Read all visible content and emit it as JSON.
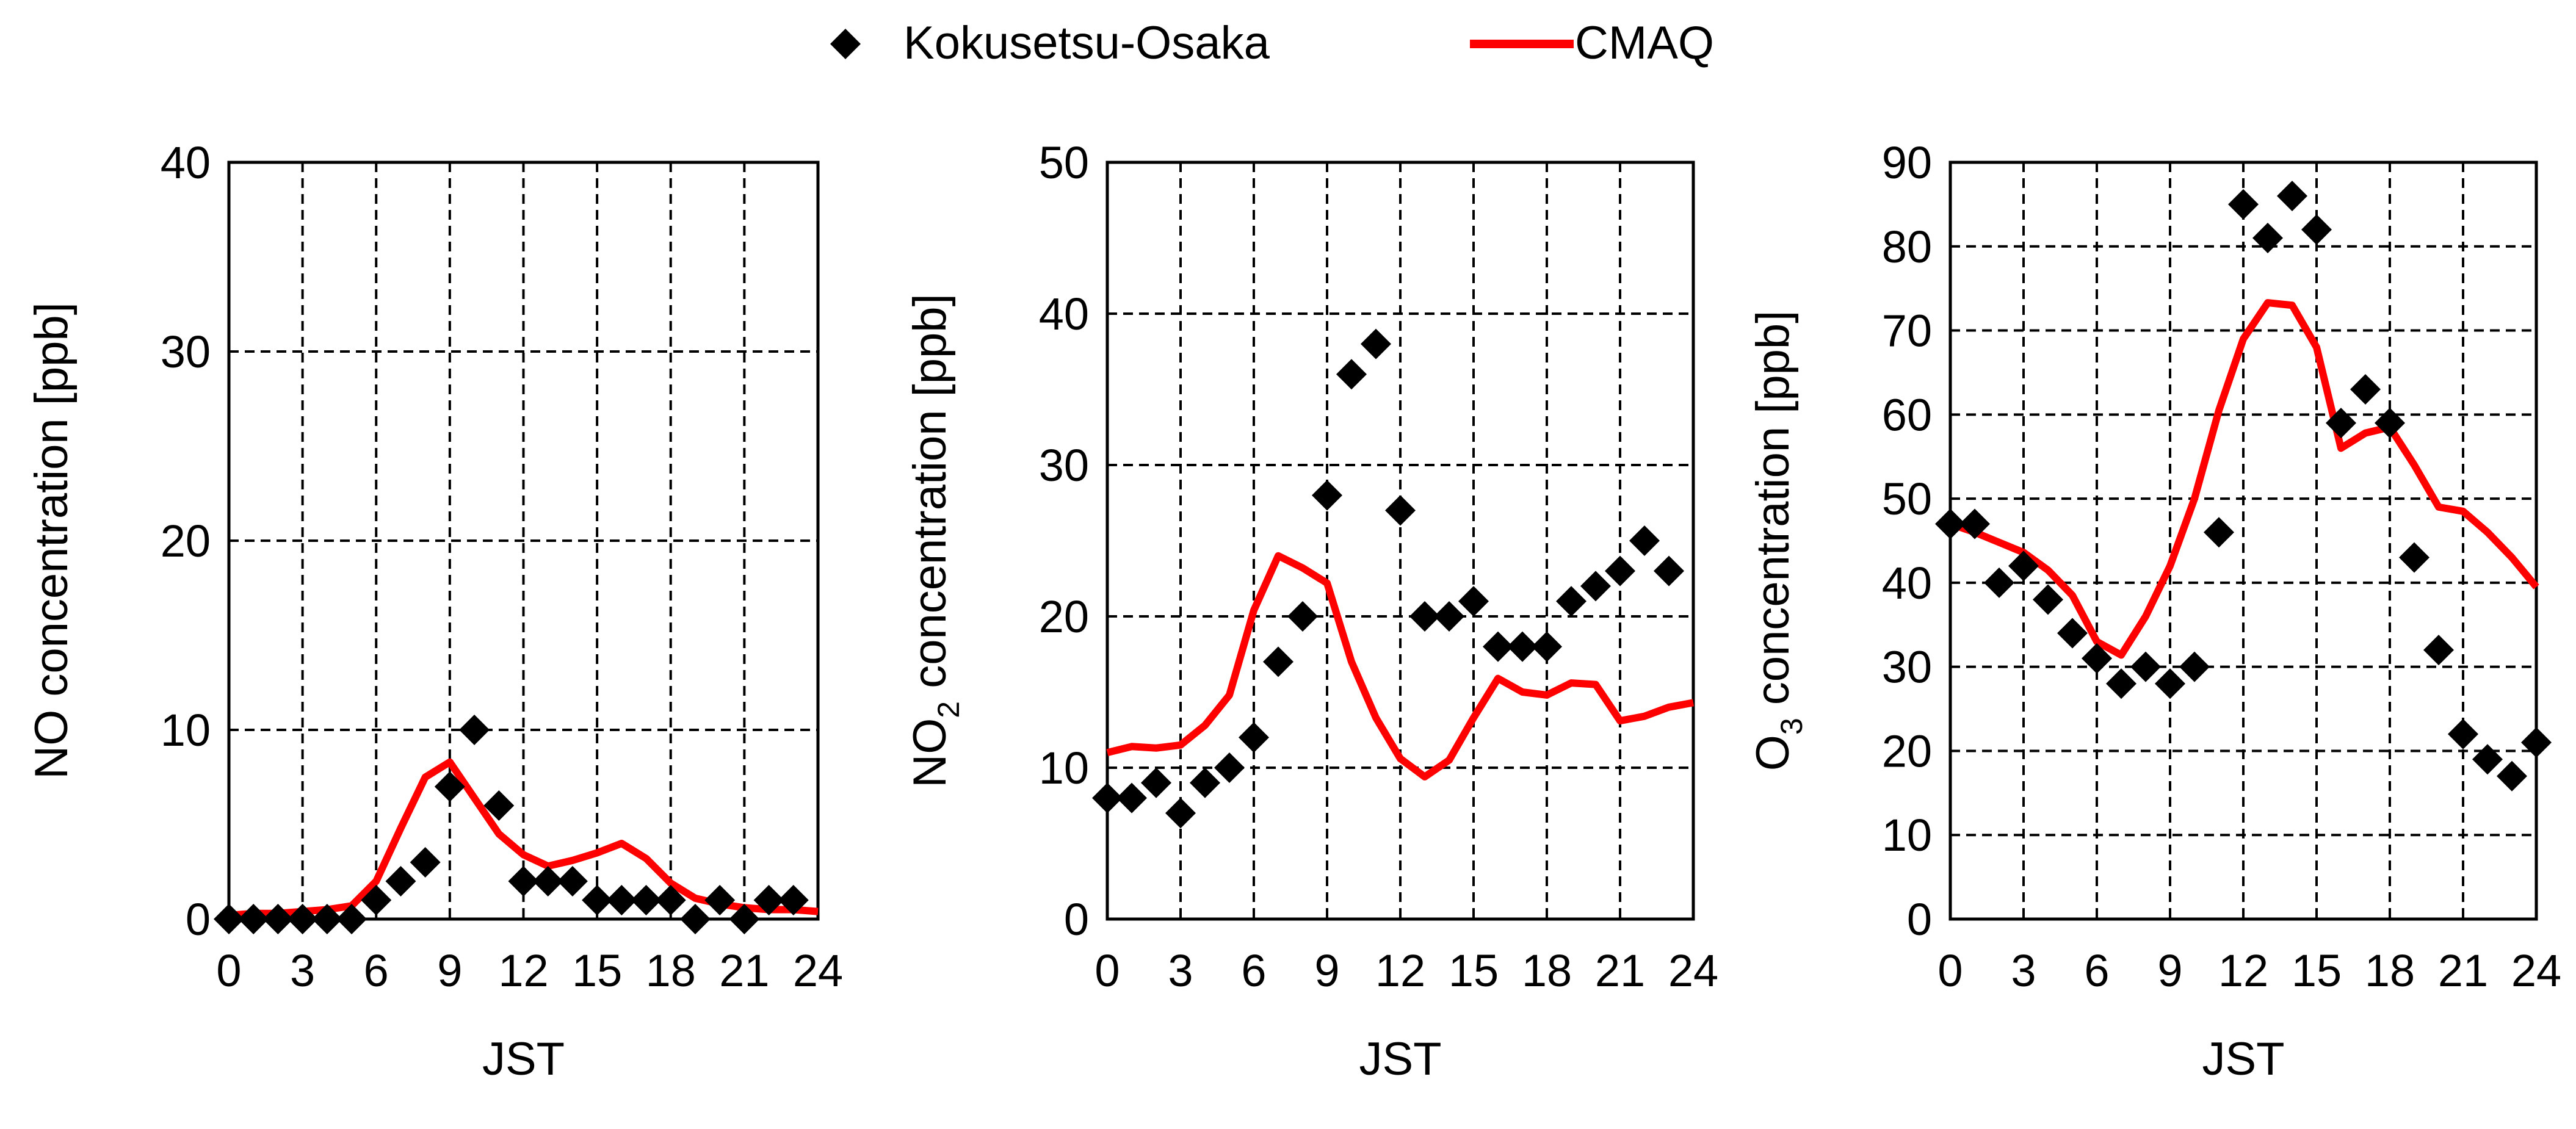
{
  "legend": {
    "obs_label": "Kokusetsu-Osaka",
    "model_label": "CMAQ"
  },
  "colors": {
    "obs": "#000000",
    "model": "#ff0000",
    "grid": "#000000"
  },
  "chart_data": [
    {
      "type": "line",
      "id": "no",
      "title": "",
      "xlabel": "JST",
      "ylabel_parts": [
        [
          "NO concentration [ppb]",
          false
        ]
      ],
      "xlim": [
        0,
        24
      ],
      "ylim": [
        0,
        40
      ],
      "xticks": [
        0,
        3,
        6,
        9,
        12,
        15,
        18,
        21,
        24
      ],
      "xtick_labels": [
        "0",
        "3",
        "6",
        "9",
        "12",
        "15",
        "18",
        "21",
        "24"
      ],
      "yticks": [
        0,
        10,
        20,
        30,
        40
      ],
      "ytick_labels": [
        "0",
        "10",
        "20",
        "30",
        "40"
      ],
      "grid": true,
      "series": [
        {
          "name": "Kokusetsu-Osaka",
          "kind": "scatter",
          "x": [
            0,
            1,
            2,
            3,
            4,
            5,
            6,
            7,
            8,
            9,
            10,
            11,
            12,
            13,
            14,
            15,
            16,
            17,
            18,
            19,
            20,
            21,
            22,
            23
          ],
          "y": [
            0,
            0,
            0,
            0,
            0,
            0,
            1,
            2,
            3,
            7,
            10,
            6,
            2,
            2,
            2,
            1,
            1,
            1,
            1,
            0,
            1,
            0,
            1,
            1
          ]
        },
        {
          "name": "CMAQ",
          "kind": "line",
          "x": [
            0,
            1,
            2,
            3,
            4,
            5,
            6,
            7,
            8,
            9,
            10,
            11,
            12,
            13,
            14,
            15,
            16,
            17,
            18,
            19,
            20,
            21,
            22,
            23,
            24
          ],
          "y": [
            0.2,
            0.3,
            0.3,
            0.4,
            0.5,
            0.7,
            2.0,
            4.8,
            7.5,
            8.3,
            6.4,
            4.5,
            3.4,
            2.8,
            3.1,
            3.5,
            4.0,
            3.2,
            1.9,
            1.1,
            0.8,
            0.6,
            0.5,
            0.5,
            0.4
          ]
        }
      ]
    },
    {
      "type": "line",
      "id": "no2",
      "title": "",
      "xlabel": "JST",
      "ylabel_parts": [
        [
          "NO",
          false
        ],
        [
          "2",
          true
        ],
        [
          " concentration [ppb]",
          false
        ]
      ],
      "xlim": [
        0,
        24
      ],
      "ylim": [
        0,
        50
      ],
      "xticks": [
        0,
        3,
        6,
        9,
        12,
        15,
        18,
        21,
        24
      ],
      "xtick_labels": [
        "0",
        "3",
        "6",
        "9",
        "12",
        "15",
        "18",
        "21",
        "24"
      ],
      "yticks": [
        0,
        10,
        20,
        30,
        40,
        50
      ],
      "ytick_labels": [
        "0",
        "10",
        "20",
        "30",
        "40",
        "50"
      ],
      "grid": true,
      "series": [
        {
          "name": "Kokusetsu-Osaka",
          "kind": "scatter",
          "x": [
            0,
            1,
            2,
            3,
            4,
            5,
            6,
            7,
            8,
            9,
            10,
            11,
            12,
            13,
            14,
            15,
            16,
            17,
            18,
            19,
            20,
            21,
            22,
            23
          ],
          "y": [
            8,
            8,
            9,
            7,
            9,
            10,
            12,
            17,
            20,
            28,
            36,
            38,
            27,
            20,
            20,
            21,
            18,
            18,
            18,
            21,
            22,
            23,
            25,
            23
          ]
        },
        {
          "name": "CMAQ",
          "kind": "line",
          "x": [
            0,
            1,
            2,
            3,
            4,
            5,
            6,
            7,
            8,
            9,
            10,
            11,
            12,
            13,
            14,
            15,
            16,
            17,
            18,
            19,
            20,
            21,
            22,
            23,
            24
          ],
          "y": [
            11.0,
            11.4,
            11.3,
            11.5,
            12.8,
            14.8,
            20.4,
            24.0,
            23.2,
            22.2,
            17.0,
            13.3,
            10.6,
            9.4,
            10.5,
            13.3,
            15.9,
            15.0,
            14.8,
            15.6,
            15.5,
            13.1,
            13.4,
            14.0,
            14.3
          ]
        }
      ]
    },
    {
      "type": "line",
      "id": "o3",
      "title": "",
      "xlabel": "JST",
      "ylabel_parts": [
        [
          "O",
          false
        ],
        [
          "3",
          true
        ],
        [
          " concentration [ppb]",
          false
        ]
      ],
      "xlim": [
        0,
        24
      ],
      "ylim": [
        0,
        90
      ],
      "xticks": [
        0,
        3,
        6,
        9,
        12,
        15,
        18,
        21,
        24
      ],
      "xtick_labels": [
        "0",
        "3",
        "6",
        "9",
        "12",
        "15",
        "18",
        "21",
        "24"
      ],
      "yticks": [
        0,
        10,
        20,
        30,
        40,
        50,
        60,
        70,
        80,
        90
      ],
      "ytick_labels": [
        "0",
        "10",
        "20",
        "30",
        "40",
        "50",
        "60",
        "70",
        "80",
        "90"
      ],
      "grid": true,
      "series": [
        {
          "name": "Kokusetsu-Osaka",
          "kind": "scatter",
          "x": [
            0,
            1,
            2,
            3,
            4,
            5,
            6,
            7,
            8,
            9,
            10,
            11,
            12,
            13,
            14,
            15,
            16,
            17,
            18,
            19,
            20,
            21,
            22,
            23,
            24
          ],
          "y": [
            47,
            47,
            40,
            42,
            38,
            34,
            31,
            28,
            30,
            28,
            30,
            46,
            85,
            81,
            86,
            82,
            59,
            63,
            59,
            43,
            32,
            22,
            19,
            17,
            21
          ]
        },
        {
          "name": "CMAQ",
          "kind": "line",
          "x": [
            0,
            1,
            2,
            3,
            4,
            5,
            6,
            7,
            8,
            9,
            10,
            11,
            12,
            13,
            14,
            15,
            16,
            17,
            18,
            19,
            20,
            21,
            22,
            23,
            24
          ],
          "y": [
            47,
            46,
            44.8,
            43.6,
            41.5,
            38.5,
            33.0,
            31.4,
            36.0,
            42.0,
            50.0,
            60.5,
            69.0,
            73.3,
            73.0,
            68.0,
            56.0,
            57.8,
            58.5,
            54.0,
            49.0,
            48.5,
            46.0,
            43.0,
            39.5
          ]
        }
      ]
    }
  ]
}
